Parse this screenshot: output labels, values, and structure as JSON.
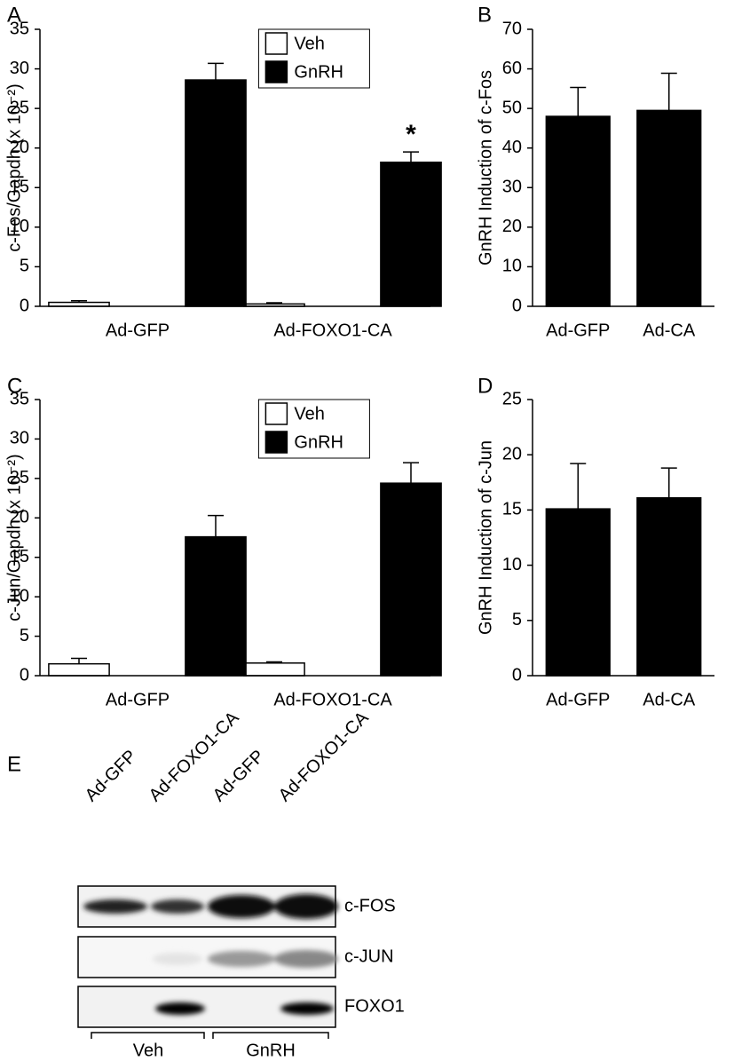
{
  "chart_data": [
    {
      "type": "bar",
      "panel_label": "A",
      "ylabel": "c-Fos/Gapdh (x 10⁻²)",
      "categories": [
        "Ad-GFP",
        "Ad-FOXO1-CA"
      ],
      "series": [
        {
          "name": "Veh",
          "color": "#ffffff",
          "values": [
            0.5,
            0.3
          ],
          "errors": [
            0.2,
            0.15
          ]
        },
        {
          "name": "GnRH",
          "color": "#000000",
          "values": [
            28.6,
            18.2
          ],
          "errors": [
            2.1,
            1.3
          ]
        }
      ],
      "annotations": [
        "*"
      ],
      "legend": "upper center",
      "ylim": [
        0,
        35
      ],
      "yticks": [
        0,
        5,
        10,
        15,
        20,
        25,
        30,
        35
      ]
    },
    {
      "type": "bar",
      "panel_label": "B",
      "ylabel": "GnRH Induction of c-Fos",
      "categories": [
        "Ad-GFP",
        "Ad-CA"
      ],
      "values": [
        48,
        49.5
      ],
      "errors": [
        7.3,
        9.4
      ],
      "color": "#000000",
      "ylim": [
        0,
        70
      ],
      "yticks": [
        0,
        10,
        20,
        30,
        40,
        50,
        60,
        70
      ]
    },
    {
      "type": "bar",
      "panel_label": "C",
      "ylabel": "c-Jun/Gapdh (x 10⁻²)",
      "categories": [
        "Ad-GFP",
        "Ad-FOXO1-CA"
      ],
      "series": [
        {
          "name": "Veh",
          "color": "#ffffff",
          "values": [
            1.5,
            1.6
          ],
          "errors": [
            0.7,
            0.15
          ]
        },
        {
          "name": "GnRH",
          "color": "#000000",
          "values": [
            17.6,
            24.4
          ],
          "errors": [
            2.7,
            2.6
          ]
        }
      ],
      "legend": "upper center",
      "ylim": [
        0,
        35
      ],
      "yticks": [
        0,
        5,
        10,
        15,
        20,
        25,
        30,
        35
      ]
    },
    {
      "type": "bar",
      "panel_label": "D",
      "ylabel": "GnRH Induction of c-Jun",
      "categories": [
        "Ad-GFP",
        "Ad-CA"
      ],
      "values": [
        15.1,
        16.1
      ],
      "errors": [
        4.1,
        2.7
      ],
      "color": "#000000",
      "ylim": [
        0,
        25
      ],
      "yticks": [
        0,
        5,
        10,
        15,
        20,
        25
      ]
    }
  ],
  "blot": {
    "panel_label": "E",
    "lanes": [
      "Ad-GFP",
      "Ad-FOXO1-CA",
      "Ad-GFP",
      "Ad-FOXO1-CA"
    ],
    "proteins": [
      "c-FOS",
      "c-JUN",
      "FOXO1"
    ],
    "groups": [
      "Veh",
      "GnRH"
    ]
  }
}
